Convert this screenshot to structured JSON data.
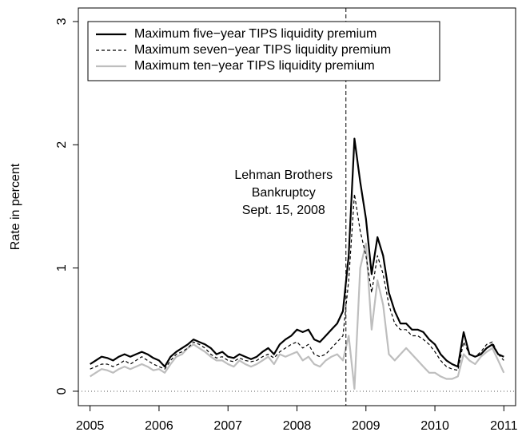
{
  "chart_data": {
    "type": "line",
    "y_label": "Rate in percent",
    "x": [
      2005,
      2005.083,
      2005.167,
      2005.25,
      2005.333,
      2005.417,
      2005.5,
      2005.583,
      2005.667,
      2005.75,
      2005.833,
      2005.917,
      2006,
      2006.083,
      2006.167,
      2006.25,
      2006.333,
      2006.417,
      2006.5,
      2006.583,
      2006.667,
      2006.75,
      2006.833,
      2006.917,
      2007,
      2007.083,
      2007.167,
      2007.25,
      2007.333,
      2007.417,
      2007.5,
      2007.583,
      2007.667,
      2007.75,
      2007.833,
      2007.917,
      2008,
      2008.083,
      2008.167,
      2008.25,
      2008.333,
      2008.417,
      2008.5,
      2008.583,
      2008.667,
      2008.75,
      2008.833,
      2008.917,
      2009,
      2009.083,
      2009.167,
      2009.25,
      2009.333,
      2009.417,
      2009.5,
      2009.583,
      2009.667,
      2009.75,
      2009.833,
      2009.917,
      2010,
      2010.083,
      2010.167,
      2010.25,
      2010.333,
      2010.417,
      2010.5,
      2010.583,
      2010.667,
      2010.75,
      2010.833,
      2010.917,
      2011
    ],
    "series": [
      {
        "name": "Maximum five−year TIPS liquidity premium",
        "color": "#000000",
        "style": "solid",
        "values": [
          0.22,
          0.25,
          0.28,
          0.27,
          0.25,
          0.28,
          0.3,
          0.28,
          0.3,
          0.32,
          0.3,
          0.27,
          0.25,
          0.2,
          0.28,
          0.32,
          0.35,
          0.38,
          0.42,
          0.4,
          0.38,
          0.35,
          0.3,
          0.32,
          0.28,
          0.27,
          0.3,
          0.28,
          0.26,
          0.28,
          0.32,
          0.35,
          0.3,
          0.38,
          0.42,
          0.45,
          0.5,
          0.48,
          0.5,
          0.42,
          0.4,
          0.45,
          0.5,
          0.55,
          0.65,
          1.1,
          2.05,
          1.7,
          1.4,
          0.95,
          1.25,
          1.1,
          0.8,
          0.65,
          0.55,
          0.55,
          0.5,
          0.5,
          0.48,
          0.42,
          0.38,
          0.3,
          0.25,
          0.22,
          0.2,
          0.48,
          0.3,
          0.28,
          0.3,
          0.35,
          0.38,
          0.3,
          0.28
        ]
      },
      {
        "name": "Maximum seven−year TIPS liquidity premium",
        "color": "#000000",
        "style": "dashed",
        "values": [
          0.18,
          0.2,
          0.22,
          0.22,
          0.2,
          0.22,
          0.25,
          0.22,
          0.25,
          0.28,
          0.25,
          0.22,
          0.2,
          0.18,
          0.25,
          0.3,
          0.32,
          0.35,
          0.4,
          0.38,
          0.35,
          0.3,
          0.27,
          0.28,
          0.25,
          0.24,
          0.27,
          0.25,
          0.24,
          0.25,
          0.28,
          0.3,
          0.27,
          0.32,
          0.35,
          0.38,
          0.4,
          0.35,
          0.38,
          0.3,
          0.28,
          0.3,
          0.35,
          0.4,
          0.45,
          0.9,
          1.6,
          1.3,
          1.1,
          0.8,
          1.1,
          0.95,
          0.7,
          0.55,
          0.5,
          0.5,
          0.45,
          0.45,
          0.42,
          0.38,
          0.32,
          0.25,
          0.2,
          0.18,
          0.17,
          0.4,
          0.3,
          0.28,
          0.32,
          0.38,
          0.4,
          0.3,
          0.25
        ]
      },
      {
        "name": "Maximum ten−year TIPS liquidity premium",
        "color": "#bebebe",
        "style": "solid",
        "values": [
          0.12,
          0.15,
          0.18,
          0.17,
          0.15,
          0.18,
          0.2,
          0.18,
          0.2,
          0.22,
          0.2,
          0.17,
          0.18,
          0.15,
          0.22,
          0.28,
          0.3,
          0.35,
          0.38,
          0.35,
          0.32,
          0.28,
          0.25,
          0.25,
          0.22,
          0.2,
          0.25,
          0.22,
          0.2,
          0.22,
          0.25,
          0.28,
          0.22,
          0.3,
          0.28,
          0.3,
          0.32,
          0.25,
          0.28,
          0.22,
          0.2,
          0.25,
          0.28,
          0.3,
          0.25,
          0.45,
          0.02,
          1.0,
          1.2,
          0.5,
          0.9,
          0.7,
          0.3,
          0.25,
          0.3,
          0.35,
          0.3,
          0.25,
          0.2,
          0.15,
          0.15,
          0.12,
          0.1,
          0.1,
          0.12,
          0.3,
          0.25,
          0.22,
          0.28,
          0.32,
          0.35,
          0.25,
          0.15
        ]
      }
    ],
    "xlim": [
      2004.83,
      2011.17
    ],
    "ylim": [
      -0.117,
      3.11
    ],
    "xticks": [
      2005,
      2006,
      2007,
      2008,
      2009,
      2010,
      2011
    ],
    "yticks": [
      0,
      1,
      2,
      3
    ],
    "hline": 0,
    "annotation": {
      "x": 2008.71,
      "lines": [
        "Lehman Brothers",
        "Bankruptcy",
        "Sept. 15, 2008"
      ]
    },
    "legend": "top-left"
  }
}
